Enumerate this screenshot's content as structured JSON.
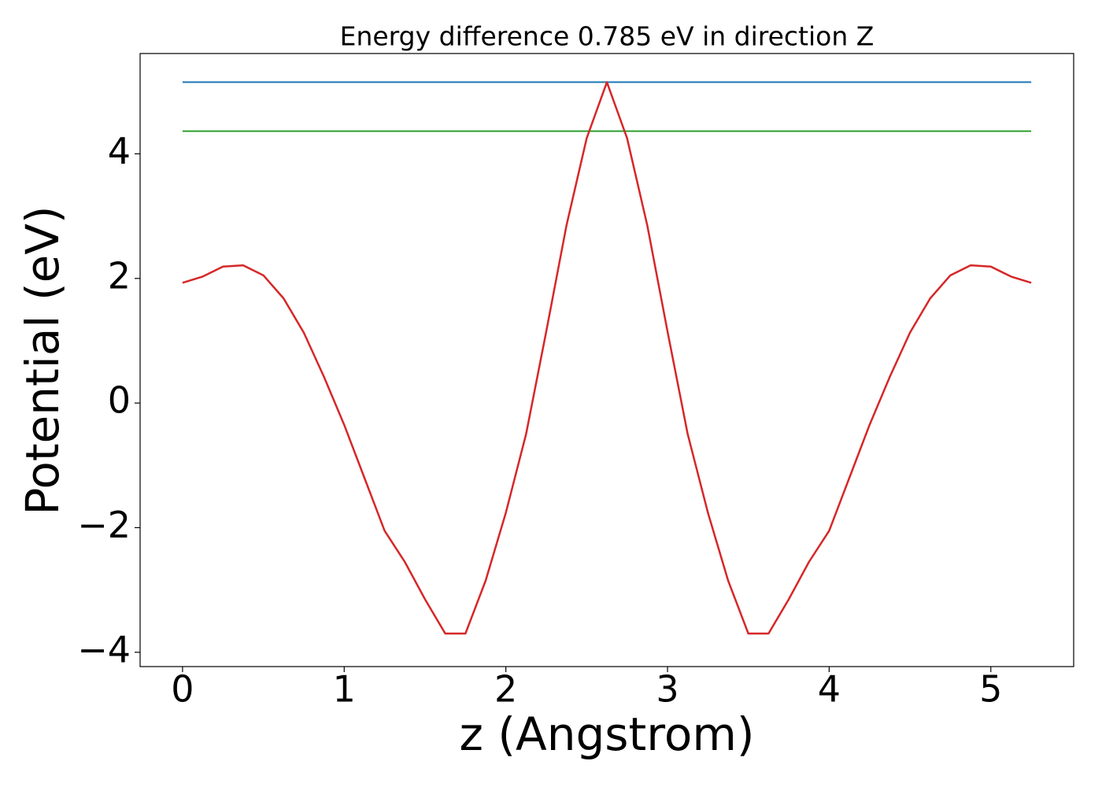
{
  "chart_data": {
    "type": "line",
    "title": "Energy difference 0.785 eV in direction Z",
    "x_label": "z (Angstrom)",
    "y_label": "Potential (eV)",
    "x": [
      0,
      0.125,
      0.25,
      0.375,
      0.5,
      0.625,
      0.75,
      0.875,
      1.0,
      1.125,
      1.25,
      1.375,
      1.5,
      1.625,
      1.75,
      1.875,
      2.0,
      2.125,
      2.25,
      2.375,
      2.5,
      2.625,
      2.75,
      2.875,
      3.0,
      3.125,
      3.25,
      3.375,
      3.5,
      3.625,
      3.75,
      3.875,
      4.0,
      4.125,
      4.25,
      4.375,
      4.5,
      4.625,
      4.75,
      4.875,
      5.0,
      5.125,
      5.25
    ],
    "series": [
      {
        "color": "#d62728",
        "values": [
          1.93,
          2.03,
          2.19,
          2.21,
          2.05,
          1.68,
          1.13,
          0.42,
          -0.35,
          -1.2,
          -2.05,
          -2.55,
          -3.15,
          -3.7,
          -3.7,
          -2.85,
          -1.76,
          -0.5,
          1.15,
          2.85,
          4.25,
          5.15,
          4.25,
          2.85,
          1.15,
          -0.5,
          -1.76,
          -2.85,
          -3.7,
          -3.7,
          -3.15,
          -2.55,
          -2.05,
          -1.2,
          -0.35,
          0.42,
          1.13,
          1.68,
          2.05,
          2.21,
          2.19,
          2.03,
          1.93
        ]
      }
    ],
    "hlines": [
      {
        "value": 5.15,
        "color": "#1f77b4"
      },
      {
        "value": 4.365,
        "color": "#2ca02c"
      }
    ],
    "xlim": [
      -0.2625,
      5.5125
    ],
    "ylim": [
      -4.23,
      5.61
    ],
    "xticks": [
      0,
      1,
      2,
      3,
      4,
      5
    ],
    "yticks": [
      {
        "value": -4,
        "label": "−4"
      },
      {
        "value": -2,
        "label": "−2"
      },
      0,
      2,
      4
    ]
  }
}
